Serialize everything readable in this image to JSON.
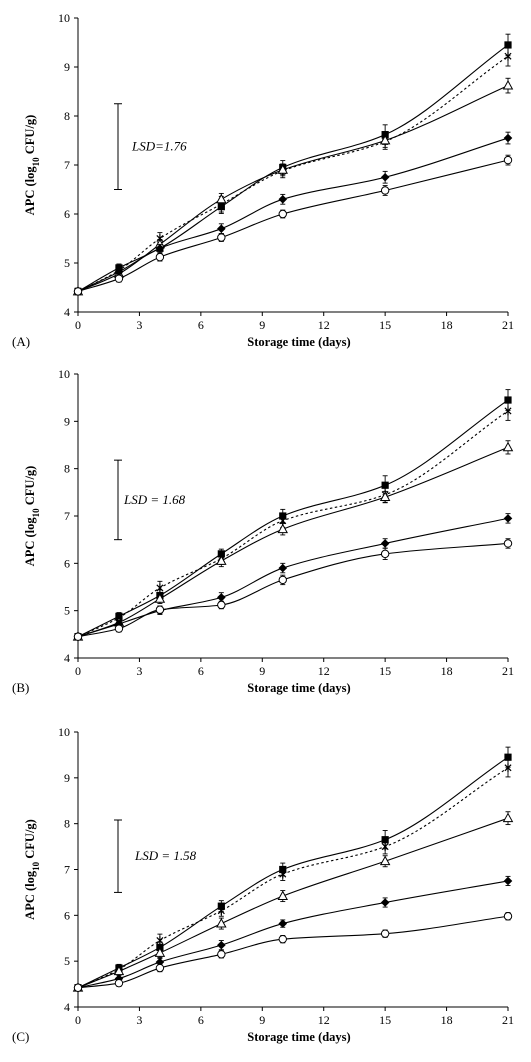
{
  "chart_data": [
    {
      "type": "line",
      "panel_label": "(A)",
      "xlabel": "Storage time (days)",
      "ylabel_parts": {
        "pre": "APC (log",
        "sub": "10",
        "post": " CFU/g)"
      },
      "xlim": [
        0,
        21
      ],
      "ylim": [
        4,
        10
      ],
      "xticks": [
        0,
        3,
        6,
        9,
        12,
        15,
        18,
        21
      ],
      "yticks": [
        4,
        5,
        6,
        7,
        8,
        9,
        10
      ],
      "x": [
        0,
        2,
        4,
        7,
        10,
        15,
        21
      ],
      "lsd": {
        "label": "LSD=1.76",
        "value": 1.76,
        "bar_y": [
          6.5,
          8.25
        ]
      },
      "series": [
        {
          "marker": "square",
          "line": "solid",
          "values": [
            4.42,
            4.9,
            5.3,
            6.15,
            6.95,
            7.62,
            9.45
          ],
          "err": [
            0.07,
            0.08,
            0.12,
            0.14,
            0.14,
            0.2,
            0.22
          ]
        },
        {
          "marker": "star",
          "line": "dotted",
          "values": [
            4.42,
            4.85,
            5.5,
            6.2,
            6.88,
            7.48,
            9.22
          ],
          "err": [
            0.06,
            0.07,
            0.12,
            0.16,
            0.14,
            0.16,
            0.2
          ]
        },
        {
          "marker": "triangle",
          "line": "solid",
          "values": [
            4.42,
            4.78,
            5.38,
            6.3,
            6.9,
            7.5,
            8.62
          ],
          "err": [
            0.06,
            0.07,
            0.1,
            0.12,
            0.12,
            0.14,
            0.15
          ]
        },
        {
          "marker": "diamond",
          "line": "solid",
          "values": [
            4.42,
            4.82,
            5.3,
            5.7,
            6.3,
            6.75,
            7.55
          ],
          "err": [
            0.06,
            0.07,
            0.08,
            0.1,
            0.1,
            0.12,
            0.12
          ]
        },
        {
          "marker": "circle",
          "line": "solid",
          "values": [
            4.42,
            4.68,
            5.12,
            5.52,
            6.0,
            6.48,
            7.1
          ],
          "err": [
            0.06,
            0.07,
            0.08,
            0.08,
            0.08,
            0.1,
            0.1
          ]
        }
      ]
    },
    {
      "type": "line",
      "panel_label": "(B)",
      "xlabel": "Storage time (days)",
      "ylabel_parts": {
        "pre": "APC (log",
        "sub": "10",
        "post": " CFU/g)"
      },
      "xlim": [
        0,
        21
      ],
      "ylim": [
        4,
        10
      ],
      "xticks": [
        0,
        3,
        6,
        9,
        12,
        15,
        18,
        21
      ],
      "yticks": [
        4,
        5,
        6,
        7,
        8,
        9,
        10
      ],
      "x": [
        0,
        2,
        4,
        7,
        10,
        15,
        21
      ],
      "lsd": {
        "label": "LSD = 1.68",
        "value": 1.68,
        "bar_y": [
          6.5,
          8.18
        ]
      },
      "series": [
        {
          "marker": "square",
          "line": "solid",
          "values": [
            4.45,
            4.88,
            5.32,
            6.2,
            7.0,
            7.65,
            9.45
          ],
          "err": [
            0.07,
            0.08,
            0.12,
            0.1,
            0.14,
            0.2,
            0.22
          ]
        },
        {
          "marker": "star",
          "line": "dotted",
          "values": [
            4.45,
            4.85,
            5.48,
            6.1,
            6.9,
            7.45,
            9.22
          ],
          "err": [
            0.06,
            0.07,
            0.14,
            0.12,
            0.14,
            0.16,
            0.2
          ]
        },
        {
          "marker": "triangle",
          "line": "solid",
          "values": [
            4.45,
            4.75,
            5.25,
            6.05,
            6.72,
            7.4,
            8.45
          ],
          "err": [
            0.06,
            0.07,
            0.1,
            0.12,
            0.12,
            0.12,
            0.14
          ]
        },
        {
          "marker": "diamond",
          "line": "solid",
          "values": [
            4.45,
            4.72,
            5.0,
            5.28,
            5.9,
            6.42,
            6.95
          ],
          "err": [
            0.06,
            0.07,
            0.08,
            0.1,
            0.1,
            0.1,
            0.1
          ]
        },
        {
          "marker": "circle",
          "line": "solid",
          "values": [
            4.45,
            4.62,
            5.02,
            5.12,
            5.65,
            6.2,
            6.42
          ],
          "err": [
            0.06,
            0.07,
            0.08,
            0.08,
            0.1,
            0.12,
            0.1
          ]
        }
      ]
    },
    {
      "type": "line",
      "panel_label": "(C)",
      "xlabel": "Storage time (days)",
      "ylabel_parts": {
        "pre": "APC (log",
        "sub": "10",
        "post": " CFU/g)"
      },
      "xlim": [
        0,
        21
      ],
      "ylim": [
        4,
        10
      ],
      "xticks": [
        0,
        3,
        6,
        9,
        12,
        15,
        18,
        21
      ],
      "yticks": [
        4,
        5,
        6,
        7,
        8,
        9,
        10
      ],
      "x": [
        0,
        2,
        4,
        7,
        10,
        15,
        21
      ],
      "lsd": {
        "label": "LSD = 1.58",
        "value": 1.58,
        "bar_y": [
          6.5,
          8.08
        ]
      },
      "series": [
        {
          "marker": "square",
          "line": "solid",
          "values": [
            4.42,
            4.85,
            5.3,
            6.2,
            7.0,
            7.65,
            9.45
          ],
          "err": [
            0.07,
            0.08,
            0.12,
            0.12,
            0.14,
            0.2,
            0.22
          ]
        },
        {
          "marker": "star",
          "line": "dotted",
          "values": [
            4.42,
            4.82,
            5.45,
            6.1,
            6.9,
            7.5,
            9.22
          ],
          "err": [
            0.06,
            0.07,
            0.14,
            0.12,
            0.14,
            0.16,
            0.2
          ]
        },
        {
          "marker": "triangle",
          "line": "solid",
          "values": [
            4.42,
            4.78,
            5.18,
            5.82,
            6.42,
            7.18,
            8.12
          ],
          "err": [
            0.06,
            0.07,
            0.1,
            0.12,
            0.12,
            0.12,
            0.14
          ]
        },
        {
          "marker": "diamond",
          "line": "solid",
          "values": [
            4.42,
            4.62,
            4.98,
            5.35,
            5.82,
            6.28,
            6.75
          ],
          "err": [
            0.06,
            0.07,
            0.08,
            0.1,
            0.08,
            0.1,
            0.1
          ]
        },
        {
          "marker": "circle",
          "line": "solid",
          "values": [
            4.42,
            4.52,
            4.85,
            5.15,
            5.48,
            5.6,
            5.98
          ],
          "err": [
            0.06,
            0.07,
            0.08,
            0.08,
            0.08,
            0.08,
            0.08
          ]
        }
      ]
    }
  ]
}
